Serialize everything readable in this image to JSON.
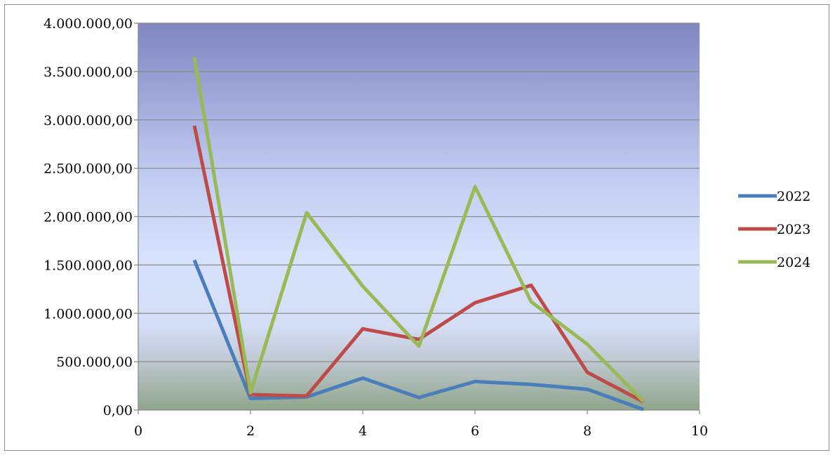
{
  "chart_data": {
    "type": "line",
    "title": "",
    "xlabel": "",
    "ylabel": "",
    "xlim": [
      0,
      10
    ],
    "ylim": [
      0,
      4000000
    ],
    "x_ticks": [
      "0",
      "2",
      "4",
      "6",
      "8",
      "10"
    ],
    "x_tick_values": [
      0,
      2,
      4,
      6,
      8,
      10
    ],
    "y_ticks": [
      "0,00",
      "500.000,00",
      "1.000.000,00",
      "1.500.000,00",
      "2.000.000,00",
      "2.500.000,00",
      "3.000.000,00",
      "3.500.000,00",
      "4.000.000,00"
    ],
    "y_tick_values": [
      0,
      500000,
      1000000,
      1500000,
      2000000,
      2500000,
      3000000,
      3500000,
      4000000
    ],
    "grid": "horizontal",
    "legend_position": "right",
    "background": "gradient from #8086c2 at top through #d4e0fb to #8fa489 at bottom",
    "x": [
      1,
      2,
      3,
      4,
      5,
      6,
      7,
      8,
      9
    ],
    "series": [
      {
        "name": "2022",
        "color": "#4a7ebb",
        "values": [
          1550000,
          120000,
          135000,
          330000,
          130000,
          295000,
          265000,
          215000,
          5000
        ]
      },
      {
        "name": "2023",
        "color": "#be4b48",
        "values": [
          2940000,
          160000,
          145000,
          840000,
          730000,
          1110000,
          1290000,
          390000,
          85000
        ]
      },
      {
        "name": "2024",
        "color": "#98b954",
        "values": [
          3650000,
          180000,
          2040000,
          1280000,
          660000,
          2310000,
          1120000,
          680000,
          90000
        ]
      }
    ]
  }
}
